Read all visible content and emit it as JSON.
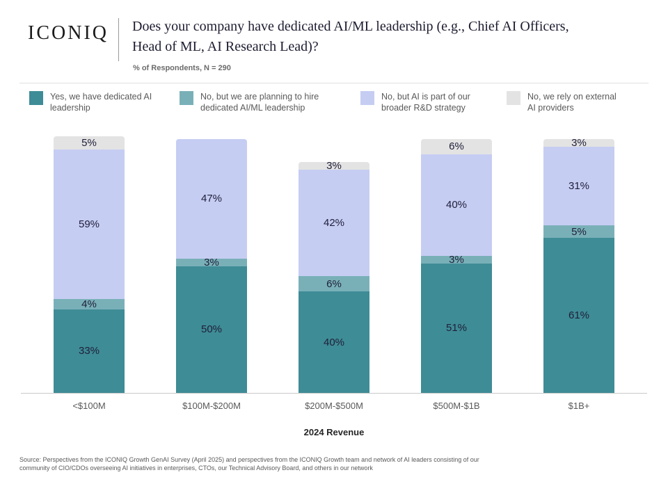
{
  "header": {
    "logo": "ICONIQ",
    "title": "Does your company have dedicated AI/ML leadership (e.g., Chief AI Officers, Head of ML, AI Research Lead)?",
    "subtitle": "% of Respondents, N = 290"
  },
  "legend": [
    {
      "label": "Yes, we have dedicated AI leadership",
      "color": "#3e8c96"
    },
    {
      "label": "No, but we are planning to hire dedicated AI/ML leadership",
      "color": "#79b0b8"
    },
    {
      "label": "No, but AI is part of our broader R&D strategy",
      "color": "#c6cdf3"
    },
    {
      "label": "No, we rely on external AI providers",
      "color": "#e3e3e3"
    }
  ],
  "chart_data": {
    "type": "bar",
    "stacked": true,
    "title": "Does your company have dedicated AI/ML leadership (e.g., Chief AI Officers, Head of ML, AI Research Lead)?",
    "subtitle": "% of Respondents, N = 290",
    "categories": [
      "<$100M",
      "$100M-$200M",
      "$200M-$500M",
      "$500M-$1B",
      "$1B+"
    ],
    "series": [
      {
        "name": "Yes, we have dedicated AI leadership",
        "color": "#3e8c96",
        "values": [
          33,
          50,
          40,
          51,
          61
        ]
      },
      {
        "name": "No, but we are planning to hire dedicated AI/ML leadership",
        "color": "#79b0b8",
        "values": [
          4,
          3,
          6,
          3,
          5
        ]
      },
      {
        "name": "No, but AI is part of our broader R&D strategy",
        "color": "#c6cdf3",
        "values": [
          59,
          47,
          42,
          40,
          31
        ]
      },
      {
        "name": "No, we rely on external AI providers",
        "color": "#e3e3e3",
        "values": [
          5,
          0,
          3,
          6,
          3
        ]
      }
    ],
    "xlabel": "2024 Revenue",
    "ylabel": "% of Respondents",
    "value_suffix": "%",
    "ylim": [
      0,
      100
    ],
    "grid": false,
    "legend_position": "top"
  },
  "footer": {
    "source": "Source: Perspectives from the ICONIQ Growth GenAI Survey (April 2025) and perspectives from the ICONIQ Growth team and network of AI leaders consisting of our community of CIO/CDOs overseeing AI initiatives in enterprises, CTOs, our Technical Advisory Board, and others in our network"
  }
}
